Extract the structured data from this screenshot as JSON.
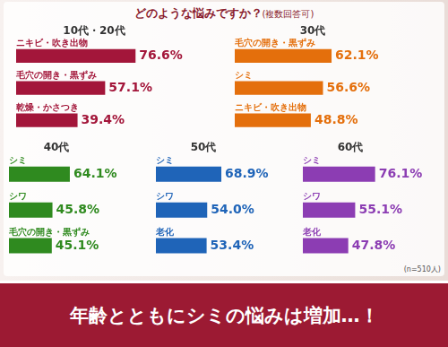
{
  "title": "どのような悩みですか？",
  "subtitle": "(複数回答可)",
  "note": "(n=510人)",
  "banner": "年齢とともにシミの悩みは増加…！",
  "chart_data": [
    {
      "type": "bar",
      "orientation": "horizontal",
      "title": "10代・20代",
      "categories": [
        "ニキビ・吹き出物",
        "毛穴の開き・黒ずみ",
        "乾燥・かさつき"
      ],
      "values": [
        76.6,
        57.1,
        39.4
      ],
      "value_labels": [
        "76.6%",
        "57.1%",
        "39.4%"
      ],
      "color": "#a3163a",
      "xlim": [
        0,
        100
      ],
      "grid": false,
      "tick_labels": false,
      "data_labels": true
    },
    {
      "type": "bar",
      "orientation": "horizontal",
      "title": "30代",
      "categories": [
        "毛穴の開き・黒ずみ",
        "シミ",
        "ニキビ・吹き出物"
      ],
      "values": [
        62.1,
        56.6,
        48.8
      ],
      "value_labels": [
        "62.1%",
        "56.6%",
        "48.8%"
      ],
      "color": "#e46f0c",
      "xlim": [
        0,
        100
      ],
      "grid": false,
      "tick_labels": false,
      "data_labels": true
    },
    {
      "type": "bar",
      "orientation": "horizontal",
      "title": "40代",
      "categories": [
        "シミ",
        "シワ",
        "毛穴の開き・黒ずみ"
      ],
      "values": [
        64.1,
        45.8,
        45.1
      ],
      "value_labels": [
        "64.1%",
        "45.8%",
        "45.1%"
      ],
      "color": "#2f8a1f",
      "xlim": [
        0,
        100
      ],
      "grid": false,
      "tick_labels": false,
      "data_labels": true
    },
    {
      "type": "bar",
      "orientation": "horizontal",
      "title": "50代",
      "categories": [
        "シミ",
        "シワ",
        "老化"
      ],
      "values": [
        68.9,
        54.0,
        53.4
      ],
      "value_labels": [
        "68.9%",
        "54.0%",
        "53.4%"
      ],
      "color": "#1f64b8",
      "xlim": [
        0,
        100
      ],
      "grid": false,
      "tick_labels": false,
      "data_labels": true
    },
    {
      "type": "bar",
      "orientation": "horizontal",
      "title": "60代",
      "categories": [
        "シミ",
        "シワ",
        "老化"
      ],
      "values": [
        76.1,
        55.1,
        47.8
      ],
      "value_labels": [
        "76.1%",
        "55.1%",
        "47.8%"
      ],
      "color": "#8c3db3",
      "xlim": [
        0,
        100
      ],
      "grid": false,
      "tick_labels": false,
      "data_labels": true
    }
  ]
}
